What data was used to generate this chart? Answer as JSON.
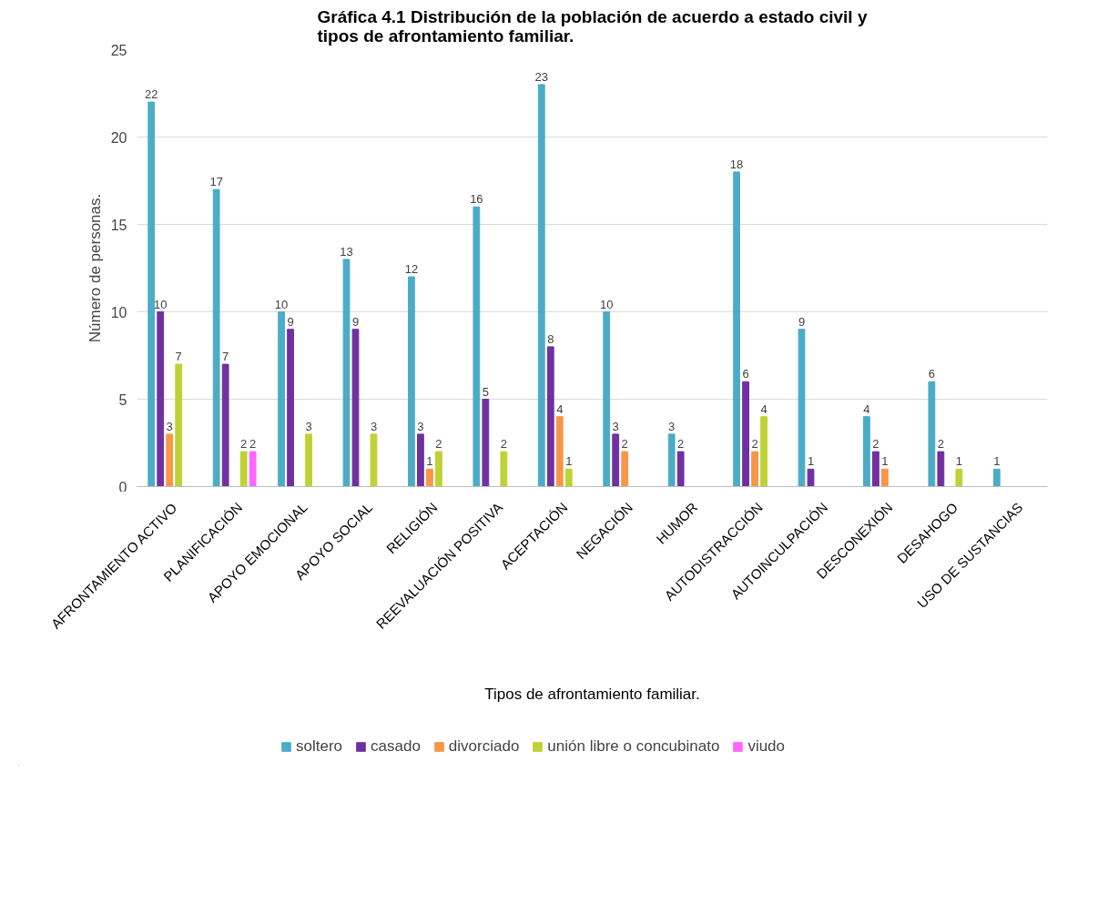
{
  "chart_data": {
    "type": "bar",
    "title": "Gráfica 4.1 Distribución de la población de acuerdo a estado civil y\ntipos de afrontamiento familiar.",
    "xlabel": "Tipos de afrontamiento familiar.",
    "ylabel": "Número de personas.",
    "categories": [
      "AFRONTAMIENTO ACTIVO",
      "PLANIFICACIÓN",
      "APOYO EMOCIONAL",
      "APOYO SOCIAL",
      "RELIGIÓN",
      "REEVALUACIÓN POSITIVA",
      "ACEPTACIÓN",
      "NEGACIÓN",
      "HUMOR",
      "AUTODISTRACCIÓN",
      "AUTOINCULPACIÓN",
      "DESCONEXIÓN",
      "DESAHOGO",
      "USO DE SUSTANCIAS"
    ],
    "series": [
      {
        "name": "soltero",
        "color": "#4bacc6",
        "values": [
          22,
          17,
          10,
          13,
          12,
          16,
          23,
          10,
          3,
          18,
          9,
          4,
          6,
          1
        ]
      },
      {
        "name": "casado",
        "color": "#7030a0",
        "values": [
          10,
          7,
          9,
          9,
          3,
          5,
          8,
          3,
          2,
          6,
          1,
          2,
          2,
          null
        ]
      },
      {
        "name": "divorciado",
        "color": "#f79646",
        "values": [
          3,
          null,
          null,
          null,
          1,
          null,
          4,
          2,
          null,
          2,
          null,
          1,
          null,
          null
        ]
      },
      {
        "name": "unión libre o concubinato",
        "color": "#bfd134",
        "values": [
          7,
          2,
          3,
          3,
          2,
          2,
          1,
          null,
          null,
          4,
          null,
          null,
          1,
          null
        ]
      },
      {
        "name": "viudo",
        "color": "#ff66ff",
        "values": [
          null,
          2,
          null,
          null,
          null,
          null,
          null,
          null,
          null,
          null,
          null,
          null,
          null,
          null
        ]
      }
    ],
    "ylim": [
      0,
      25
    ],
    "yticks": [
      0,
      5,
      10,
      15,
      20,
      25
    ],
    "grid": "y",
    "legend": "bottom",
    "data_labels": true
  }
}
